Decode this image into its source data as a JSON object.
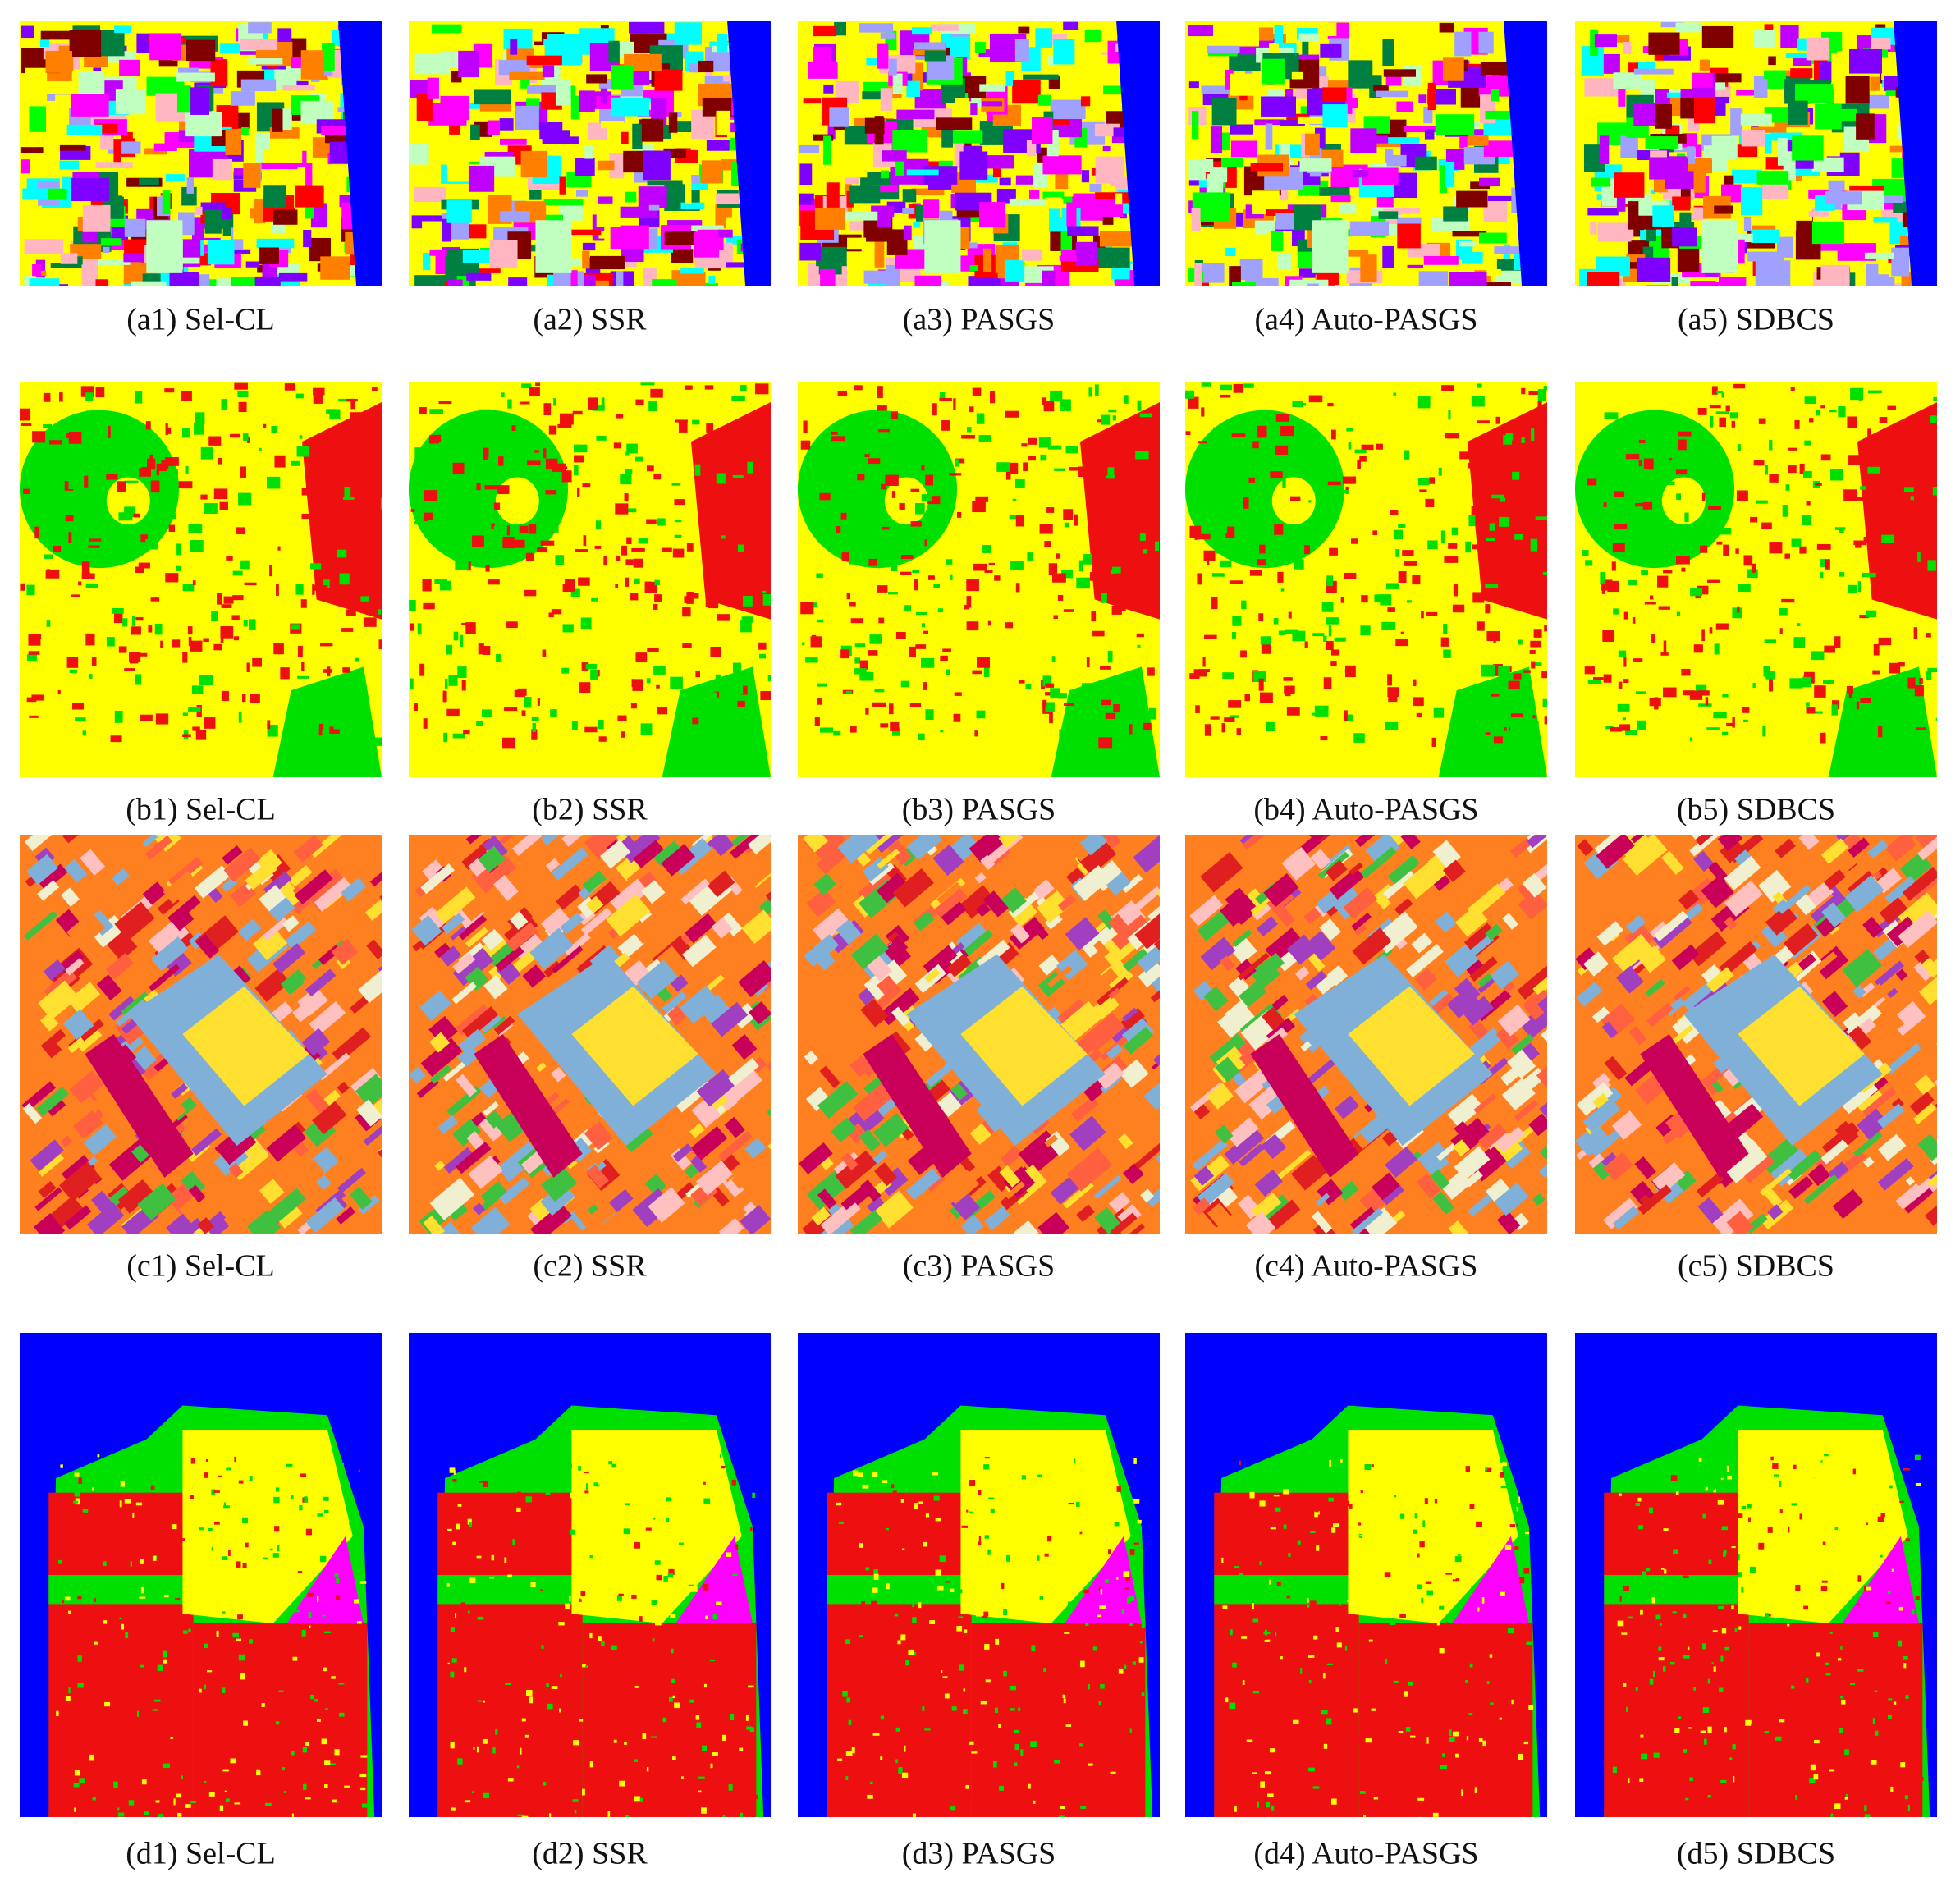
{
  "figure": {
    "rows": [
      {
        "captions": [
          "(a1) Sel-CL",
          "(a2) SSR",
          "(a3) PASGS",
          "(a4) Auto-PASGS",
          "(a5) SDBCS"
        ]
      },
      {
        "captions": [
          "(b1) Sel-CL",
          "(b2) SSR",
          "(b3) PASGS",
          "(b4) Auto-PASGS",
          "(b5) SDBCS"
        ]
      },
      {
        "captions": [
          "(c1) Sel-CL",
          "(c2) SSR",
          "(c3) PASGS",
          "(c4) Auto-PASGS",
          "(c5) SDBCS"
        ]
      },
      {
        "captions": [
          "(d1) Sel-CL",
          "(d2) SSR",
          "(d3) PASGS",
          "(d4) Auto-PASGS",
          "(d5) SDBCS"
        ]
      }
    ]
  }
}
